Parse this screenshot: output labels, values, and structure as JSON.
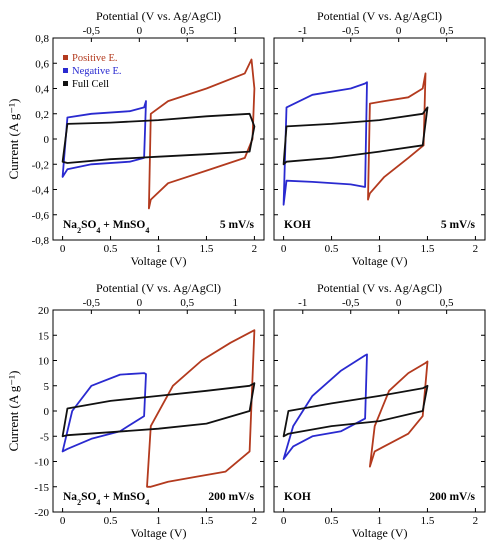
{
  "figure": {
    "ylabel": "Current (A g⁻¹)",
    "legend": {
      "positive": "Positive E.",
      "negative": "Negative E.",
      "full": "Full Cell"
    },
    "colors": {
      "positive": "#b33a1e",
      "negative": "#2a2ad0",
      "full": "#111111"
    },
    "top_axis_title": "Potential (V vs. Ag/AgCl)",
    "bottom_axis_title": "Voltage (V)"
  },
  "chart_data": [
    {
      "id": "p1",
      "type": "line",
      "electrolyte": "Na2SO4 + MnSO4",
      "rate": "5 mV/s",
      "xlim": [
        -0.1,
        2.1
      ],
      "ylim": [
        -0.8,
        0.8
      ],
      "xticks": [
        "0",
        "0.5",
        "1",
        "1.5",
        "2"
      ],
      "yticks": [
        "-0,8",
        "-0,6",
        "-0,4",
        "-0,2",
        "0",
        "0,2",
        "0,4",
        "0,6",
        "0,8"
      ],
      "top_ticks": [
        {
          "label": "-0,5",
          "v": -0.5
        },
        {
          "label": "0",
          "v": 0
        },
        {
          "label": "0,5",
          "v": 0.5
        },
        {
          "label": "1",
          "v": 1
        }
      ],
      "top_map": {
        "pot0": -0.8,
        "volt0": 0.0,
        "scale": 1.0
      },
      "show_legend": true,
      "series": [
        {
          "key": "positive",
          "x": [
            0.9,
            0.92,
            1.1,
            1.5,
            1.9,
            1.97,
            2.0,
            1.98,
            1.9,
            1.5,
            1.1,
            0.92,
            0.9
          ],
          "y": [
            -0.55,
            0.2,
            0.3,
            0.4,
            0.52,
            0.63,
            0.4,
            0.0,
            -0.15,
            -0.25,
            -0.35,
            -0.48,
            -0.55
          ]
        },
        {
          "key": "negative",
          "x": [
            0.0,
            0.05,
            0.3,
            0.7,
            0.85,
            0.87,
            0.85,
            0.7,
            0.3,
            0.05,
            0.0
          ],
          "y": [
            -0.3,
            0.17,
            0.2,
            0.22,
            0.25,
            0.3,
            -0.15,
            -0.18,
            -0.2,
            -0.24,
            -0.3
          ]
        },
        {
          "key": "full",
          "x": [
            0.0,
            0.05,
            0.5,
            1.0,
            1.5,
            1.95,
            2.0,
            1.95,
            1.5,
            1.0,
            0.5,
            0.05,
            0.0
          ],
          "y": [
            -0.18,
            0.12,
            0.13,
            0.15,
            0.18,
            0.2,
            0.1,
            -0.1,
            -0.12,
            -0.14,
            -0.16,
            -0.19,
            -0.18
          ]
        }
      ]
    },
    {
      "id": "p2",
      "type": "line",
      "electrolyte": "KOH",
      "rate": "5 mV/s",
      "xlim": [
        -0.1,
        2.1
      ],
      "ylim": [
        -0.8,
        0.8
      ],
      "xticks": [
        "0",
        "0.5",
        "1",
        "1.5",
        "2"
      ],
      "yticks": [],
      "top_ticks": [
        {
          "label": "-1",
          "v": -1
        },
        {
          "label": "-0,5",
          "v": -0.5
        },
        {
          "label": "0",
          "v": 0
        },
        {
          "label": "0,5",
          "v": 0.5
        }
      ],
      "top_map": {
        "pot0": -1.2,
        "volt0": 0.0,
        "scale": 1.0
      },
      "show_legend": false,
      "series": [
        {
          "key": "positive",
          "x": [
            0.88,
            0.9,
            1.05,
            1.3,
            1.45,
            1.48,
            1.46,
            1.3,
            1.05,
            0.9,
            0.88
          ],
          "y": [
            -0.48,
            0.28,
            0.3,
            0.33,
            0.4,
            0.52,
            -0.05,
            -0.15,
            -0.3,
            -0.43,
            -0.48
          ]
        },
        {
          "key": "negative",
          "x": [
            0.0,
            0.03,
            0.3,
            0.7,
            0.85,
            0.87,
            0.85,
            0.7,
            0.3,
            0.03,
            0.0
          ],
          "y": [
            -0.52,
            0.25,
            0.35,
            0.4,
            0.44,
            0.45,
            -0.38,
            -0.36,
            -0.34,
            -0.33,
            -0.52
          ]
        },
        {
          "key": "full",
          "x": [
            0.0,
            0.03,
            0.5,
            1.0,
            1.45,
            1.5,
            1.45,
            1.0,
            0.5,
            0.03,
            0.0
          ],
          "y": [
            -0.2,
            0.1,
            0.12,
            0.15,
            0.2,
            0.25,
            -0.05,
            -0.1,
            -0.15,
            -0.18,
            -0.2
          ]
        }
      ]
    },
    {
      "id": "p3",
      "type": "line",
      "electrolyte": "Na2SO4 + MnSO4",
      "rate": "200 mV/s",
      "xlim": [
        -0.1,
        2.1
      ],
      "ylim": [
        -20,
        20
      ],
      "xticks": [
        "0",
        "0.5",
        "1",
        "1.5",
        "2"
      ],
      "yticks": [
        "-20",
        "-15",
        "-10",
        "-5",
        "0",
        "5",
        "10",
        "15",
        "20"
      ],
      "top_ticks": [
        {
          "label": "-0,5",
          "v": -0.5
        },
        {
          "label": "0",
          "v": 0
        },
        {
          "label": "0,5",
          "v": 0.5
        },
        {
          "label": "1",
          "v": 1
        }
      ],
      "top_map": {
        "pot0": -0.8,
        "volt0": 0.0,
        "scale": 1.0
      },
      "show_legend": false,
      "series": [
        {
          "key": "positive",
          "x": [
            0.88,
            0.92,
            1.15,
            1.45,
            1.75,
            1.95,
            2.0,
            1.95,
            1.7,
            1.4,
            1.1,
            0.92,
            0.88
          ],
          "y": [
            -15,
            -3,
            5,
            10,
            13.5,
            15.5,
            16,
            -8,
            -12,
            -13,
            -14,
            -15,
            -15
          ]
        },
        {
          "key": "negative",
          "x": [
            0.0,
            0.1,
            0.3,
            0.6,
            0.85,
            0.87,
            0.85,
            0.6,
            0.3,
            0.05,
            0.0
          ],
          "y": [
            -8,
            0,
            5,
            7.2,
            7.5,
            7.3,
            -1,
            -4,
            -5.5,
            -7.5,
            -8
          ]
        },
        {
          "key": "full",
          "x": [
            0.0,
            0.05,
            0.5,
            1.0,
            1.5,
            1.95,
            2.0,
            1.95,
            1.5,
            1.0,
            0.5,
            0.05,
            0.0
          ],
          "y": [
            -5,
            0.5,
            2,
            3,
            4,
            5,
            5.5,
            0,
            -2.5,
            -3.5,
            -4.2,
            -4.8,
            -5
          ]
        }
      ]
    },
    {
      "id": "p4",
      "type": "line",
      "electrolyte": "KOH",
      "rate": "200 mV/s",
      "xlim": [
        -0.1,
        2.1
      ],
      "ylim": [
        -20,
        20
      ],
      "xticks": [
        "0",
        "0.5",
        "1",
        "1.5",
        "2"
      ],
      "yticks": [],
      "top_ticks": [
        {
          "label": "-1",
          "v": -1
        },
        {
          "label": "-0,5",
          "v": -0.5
        },
        {
          "label": "0",
          "v": 0
        },
        {
          "label": "0,5",
          "v": 0.5
        }
      ],
      "top_map": {
        "pot0": -1.2,
        "volt0": 0.0,
        "scale": 1.0
      },
      "show_legend": false,
      "series": [
        {
          "key": "positive",
          "x": [
            0.9,
            0.95,
            1.1,
            1.3,
            1.48,
            1.5,
            1.45,
            1.3,
            1.1,
            0.95,
            0.9
          ],
          "y": [
            -11,
            -3,
            4,
            7.5,
            9.5,
            9.8,
            -1,
            -4.5,
            -6.5,
            -8,
            -11
          ]
        },
        {
          "key": "negative",
          "x": [
            0.0,
            0.1,
            0.3,
            0.6,
            0.85,
            0.87,
            0.85,
            0.6,
            0.3,
            0.1,
            0.0
          ],
          "y": [
            -9.5,
            -3,
            3,
            8,
            11,
            11.2,
            -1.5,
            -4,
            -5,
            -7,
            -9.5
          ]
        },
        {
          "key": "full",
          "x": [
            0.0,
            0.05,
            0.5,
            1.0,
            1.45,
            1.5,
            1.45,
            1.0,
            0.5,
            0.05,
            0.0
          ],
          "y": [
            -5,
            0,
            1.5,
            3,
            4.5,
            5,
            0,
            -2,
            -3,
            -4.5,
            -5
          ]
        }
      ]
    }
  ]
}
